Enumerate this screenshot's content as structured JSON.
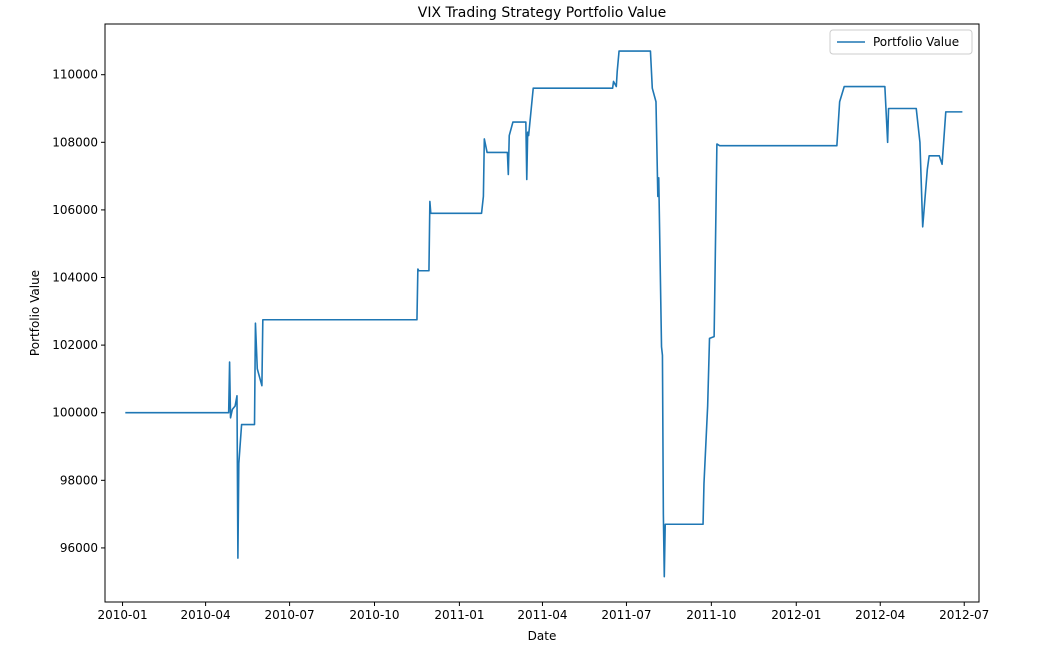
{
  "chart_data": {
    "type": "line",
    "title": "VIX Trading Strategy Portfolio Value",
    "xlabel": "Date",
    "ylabel": "Portfolio Value",
    "xlim": [
      "2009-12-13",
      "2012-07-17"
    ],
    "ylim": [
      94400,
      111500
    ],
    "x_ticks": [
      "2010-01",
      "2010-04",
      "2010-07",
      "2010-10",
      "2011-01",
      "2011-04",
      "2011-07",
      "2011-10",
      "2012-01",
      "2012-04",
      "2012-07"
    ],
    "y_ticks": [
      96000,
      98000,
      100000,
      102000,
      104000,
      106000,
      108000,
      110000
    ],
    "y_tick_labels": [
      "96000",
      "98000",
      "100000",
      "102000",
      "104000",
      "106000",
      "108000",
      "110000"
    ],
    "grid": false,
    "legend_position": "top-right",
    "series": [
      {
        "name": "Portfolio Value",
        "color": "#1f77b4",
        "points": [
          [
            "2010-01-04",
            100000
          ],
          [
            "2010-04-26",
            100000
          ],
          [
            "2010-04-27",
            101500
          ],
          [
            "2010-04-28",
            99850
          ],
          [
            "2010-04-30",
            100100
          ],
          [
            "2010-05-03",
            100200
          ],
          [
            "2010-05-05",
            100500
          ],
          [
            "2010-05-06",
            95700
          ],
          [
            "2010-05-07",
            98500
          ],
          [
            "2010-05-10",
            99650
          ],
          [
            "2010-05-24",
            99650
          ],
          [
            "2010-05-25",
            102650
          ],
          [
            "2010-05-27",
            101300
          ],
          [
            "2010-05-28",
            101200
          ],
          [
            "2010-06-01",
            100800
          ],
          [
            "2010-06-02",
            102750
          ],
          [
            "2010-11-16",
            102750
          ],
          [
            "2010-11-17",
            104250
          ],
          [
            "2010-11-18",
            104200
          ],
          [
            "2010-11-29",
            104200
          ],
          [
            "2010-11-30",
            106250
          ],
          [
            "2010-12-01",
            105900
          ],
          [
            "2011-01-25",
            105900
          ],
          [
            "2011-01-27",
            106400
          ],
          [
            "2011-01-28",
            108100
          ],
          [
            "2011-01-31",
            107700
          ],
          [
            "2011-02-22",
            107700
          ],
          [
            "2011-02-23",
            107050
          ],
          [
            "2011-02-24",
            108200
          ],
          [
            "2011-02-28",
            108600
          ],
          [
            "2011-03-14",
            108600
          ],
          [
            "2011-03-15",
            106900
          ],
          [
            "2011-03-16",
            108300
          ],
          [
            "2011-03-17",
            108200
          ],
          [
            "2011-03-22",
            109600
          ],
          [
            "2011-06-16",
            109600
          ],
          [
            "2011-06-17",
            109800
          ],
          [
            "2011-06-20",
            109650
          ],
          [
            "2011-06-21",
            110100
          ],
          [
            "2011-06-23",
            110700
          ],
          [
            "2011-07-27",
            110700
          ],
          [
            "2011-07-29",
            109600
          ],
          [
            "2011-08-02",
            109200
          ],
          [
            "2011-08-04",
            106400
          ],
          [
            "2011-08-05",
            106950
          ],
          [
            "2011-08-08",
            101950
          ],
          [
            "2011-08-09",
            101700
          ],
          [
            "2011-08-10",
            97000
          ],
          [
            "2011-08-11",
            95150
          ],
          [
            "2011-08-12",
            96700
          ],
          [
            "2011-09-22",
            96700
          ],
          [
            "2011-09-23",
            97900
          ],
          [
            "2011-09-27",
            100200
          ],
          [
            "2011-09-29",
            102200
          ],
          [
            "2011-10-04",
            102250
          ],
          [
            "2011-10-06",
            106000
          ],
          [
            "2011-10-07",
            107950
          ],
          [
            "2011-10-10",
            107900
          ],
          [
            "2012-02-14",
            107900
          ],
          [
            "2012-02-17",
            109200
          ],
          [
            "2012-02-22",
            109650
          ],
          [
            "2012-04-06",
            109650
          ],
          [
            "2012-04-09",
            108000
          ],
          [
            "2012-04-10",
            109000
          ],
          [
            "2012-05-10",
            109000
          ],
          [
            "2012-05-14",
            108000
          ],
          [
            "2012-05-17",
            105500
          ],
          [
            "2012-05-22",
            107200
          ],
          [
            "2012-05-24",
            107600
          ],
          [
            "2012-06-04",
            107600
          ],
          [
            "2012-06-07",
            107350
          ],
          [
            "2012-06-11",
            108900
          ],
          [
            "2012-06-29",
            108900
          ]
        ]
      }
    ]
  }
}
